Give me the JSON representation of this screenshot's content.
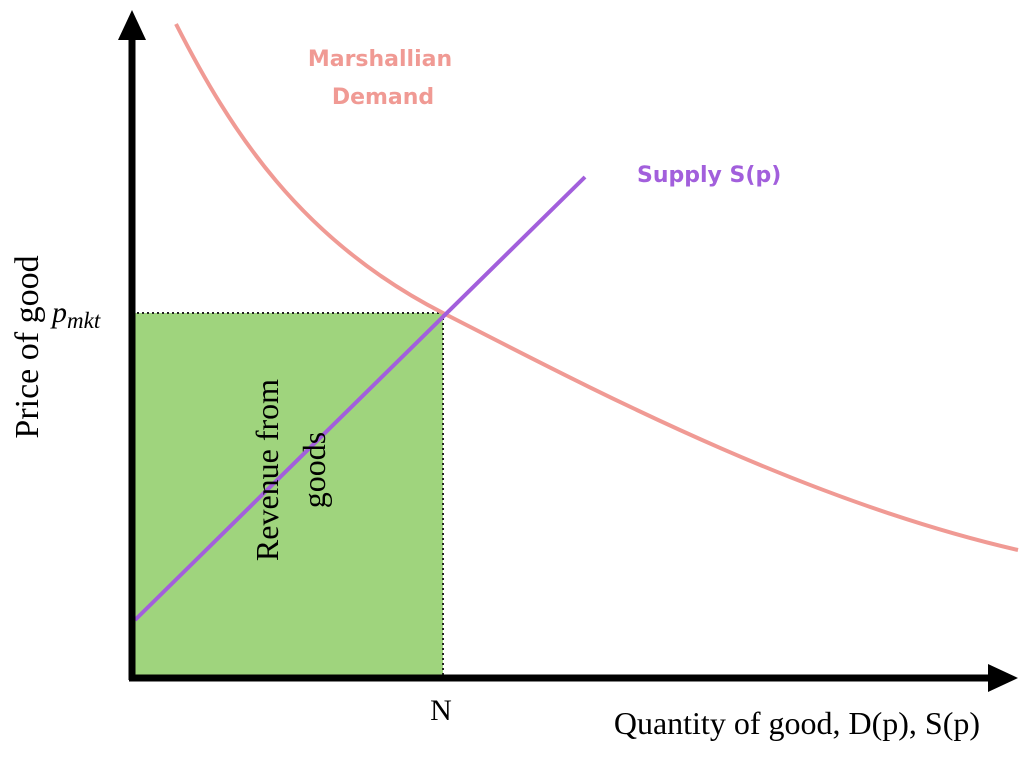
{
  "axes": {
    "y_label": "Price of good",
    "x_label": "Quantity of good, D(p), S(p)"
  },
  "ticks": {
    "price_symbol": "p",
    "price_subscript": "mkt",
    "quantity": "N"
  },
  "curves": {
    "demand": {
      "label_line1": "Marshallian",
      "label_line2": "Demand",
      "color": "#f09a94"
    },
    "supply": {
      "label": "Supply S(p)",
      "color": "#a25fdc"
    }
  },
  "region": {
    "label_line1": "Revenue from",
    "label_line2": "goods",
    "fill": "#9fd47d"
  }
}
